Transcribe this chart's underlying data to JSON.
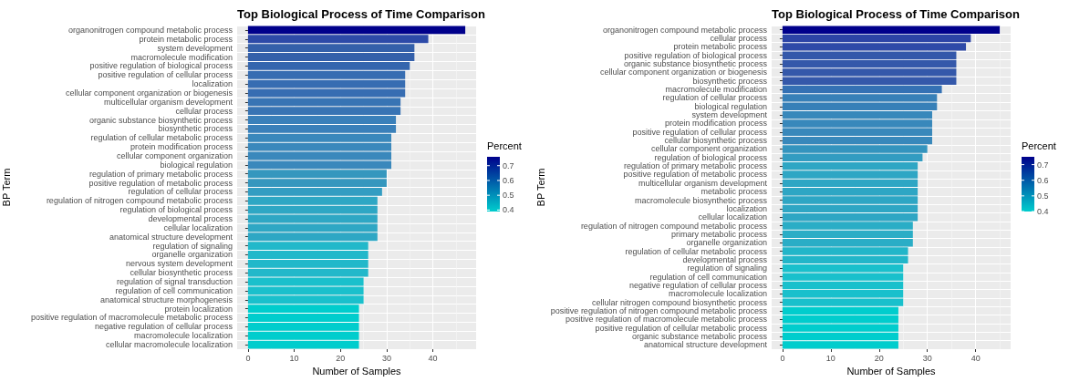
{
  "chart_data": [
    {
      "type": "bar",
      "orientation": "horizontal",
      "title": "Top Biological Process of Time Comparison",
      "xlabel": "Number of Samples",
      "ylabel": "BP Term",
      "clabel": "Percent",
      "clim": [
        0.39,
        0.76
      ],
      "cticks": [
        0.4,
        0.5,
        0.6,
        0.7
      ],
      "grid": true,
      "categories": [
        "organonitrogen compound metabolic process",
        "protein metabolic process",
        "system development",
        "macromolecule modification",
        "positive regulation of biological process",
        "positive regulation of cellular process",
        "localization",
        "cellular component organization or biogenesis",
        "multicellular organism development",
        "cellular process",
        "organic substance biosynthetic process",
        "biosynthetic process",
        "regulation of cellular metabolic process",
        "protein modification process",
        "cellular component organization",
        "biological regulation",
        "regulation of primary metabolic process",
        "positive regulation of metabolic process",
        "regulation of cellular process",
        "regulation of nitrogen compound metabolic process",
        "regulation of biological process",
        "developmental process",
        "cellular localization",
        "anatomical structure development",
        "regulation of signaling",
        "organelle organization",
        "nervous system development",
        "cellular biosynthetic process",
        "regulation of signal transduction",
        "regulation of cell communication",
        "anatomical structure morphogenesis",
        "protein localization",
        "positive regulation of macromolecule metabolic process",
        "negative regulation of cellular process",
        "macromolecule localization",
        "cellular macromolecule localization"
      ],
      "values": [
        47,
        39,
        36,
        36,
        35,
        34,
        34,
        34,
        33,
        33,
        32,
        32,
        31,
        31,
        31,
        31,
        30,
        30,
        29,
        28,
        28,
        28,
        28,
        28,
        26,
        26,
        26,
        26,
        25,
        25,
        25,
        24,
        24,
        24,
        24,
        24
      ],
      "colors": [
        "#00008b",
        "#2d4aa8",
        "#3460aa",
        "#3460aa",
        "#3566ae",
        "#376db2",
        "#376db2",
        "#376db2",
        "#3874b4",
        "#3874b4",
        "#3a80ba",
        "#3a80ba",
        "#3a88bc",
        "#3a88bc",
        "#3a88bc",
        "#3a88bc",
        "#3597be",
        "#3597be",
        "#339dc2",
        "#2ea7c4",
        "#2ea7c4",
        "#2ea7c4",
        "#2ea7c4",
        "#2ea7c4",
        "#22b8ca",
        "#22b8ca",
        "#22b8ca",
        "#22b8ca",
        "#1ac0cc",
        "#1ac0cc",
        "#1ac0cc",
        "#00cdcd",
        "#00cdcd",
        "#00cdcd",
        "#00cdcd",
        "#00cdcd"
      ],
      "xlim": [
        -2.35,
        49.35
      ],
      "xticks": [
        0,
        10,
        20,
        30,
        40
      ]
    },
    {
      "type": "bar",
      "orientation": "horizontal",
      "title": "Top Biological Process of Time Comparison",
      "xlabel": "Number of Samples",
      "ylabel": "BP Term",
      "clabel": "Percent",
      "clim": [
        0.4,
        0.75
      ],
      "cticks": [
        0.4,
        0.5,
        0.6,
        0.7
      ],
      "grid": true,
      "categories": [
        "organonitrogen compound metabolic process",
        "cellular process",
        "protein metabolic process",
        "positive regulation of biological process",
        "organic substance biosynthetic process",
        "cellular component organization or biogenesis",
        "biosynthetic process",
        "macromolecule modification",
        "regulation of cellular process",
        "biological regulation",
        "system development",
        "protein modification process",
        "positive regulation of cellular process",
        "cellular biosynthetic process",
        "cellular component organization",
        "regulation of biological process",
        "regulation of primary metabolic process",
        "positive regulation of metabolic process",
        "multicellular organism development",
        "metabolic process",
        "macromolecule biosynthetic process",
        "localization",
        "cellular localization",
        "regulation of nitrogen compound metabolic process",
        "primary metabolic process",
        "organelle organization",
        "regulation of cellular metabolic process",
        "developmental process",
        "regulation of signaling",
        "regulation of cell communication",
        "negative regulation of cellular process",
        "macromolecule localization",
        "cellular nitrogen compound biosynthetic process",
        "positive regulation of nitrogen compound metabolic process",
        "positive regulation of macromolecule metabolic process",
        "positive regulation of cellular metabolic process",
        "organic substance metabolic process",
        "anatomical structure development"
      ],
      "values": [
        45,
        39,
        38,
        36,
        36,
        36,
        36,
        33,
        32,
        32,
        31,
        31,
        31,
        31,
        30,
        29,
        28,
        28,
        28,
        28,
        28,
        28,
        28,
        27,
        27,
        27,
        26,
        26,
        25,
        25,
        25,
        25,
        25,
        24,
        24,
        24,
        24,
        24
      ],
      "colors": [
        "#00008b",
        "#2c44a6",
        "#2e4aa8",
        "#3458aa",
        "#3458aa",
        "#3458aa",
        "#3458aa",
        "#3471b4",
        "#3780b8",
        "#3780b8",
        "#3888bb",
        "#3888bb",
        "#3888bb",
        "#3888bb",
        "#3494be",
        "#329cc1",
        "#2ea6c4",
        "#2ea6c4",
        "#2ea6c4",
        "#2ea6c4",
        "#2ea6c4",
        "#2ea6c4",
        "#2ea6c4",
        "#2aadc6",
        "#2aadc6",
        "#2aadc6",
        "#22b6c9",
        "#22b6c9",
        "#19c0cc",
        "#19c0cc",
        "#19c0cc",
        "#19c0cc",
        "#19c0cc",
        "#00cdcd",
        "#00cdcd",
        "#00cdcd",
        "#00cdcd",
        "#00cdcd"
      ],
      "xlim": [
        -2.25,
        47.25
      ],
      "xticks": [
        0,
        10,
        20,
        30,
        40
      ]
    }
  ]
}
